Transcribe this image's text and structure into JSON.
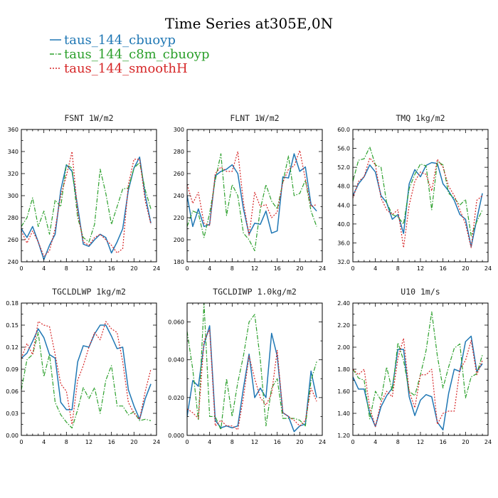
{
  "title": "Time Series at305E,0N",
  "legend": [
    {
      "label": "taus_144_cbuoyp",
      "color": "#1f77b4",
      "dash": "solid"
    },
    {
      "label": "taus_144_c8m_cbuoyp",
      "color": "#2ca02c",
      "dash": "dashdot"
    },
    {
      "label": "taus_144_smoothH",
      "color": "#d62728",
      "dash": "dotted"
    }
  ],
  "chart_data": [
    {
      "type": "line",
      "title": "FSNT   1W/m2",
      "xlim": [
        0,
        24
      ],
      "ylim": [
        240,
        360
      ],
      "xticks": [
        0,
        4,
        8,
        12,
        16,
        20,
        24
      ],
      "yticks": [
        240,
        260,
        280,
        300,
        320,
        340,
        360
      ],
      "ytick_labels": [
        "240",
        "260",
        "280",
        "300",
        "320",
        "340",
        "360"
      ],
      "x": [
        0,
        1,
        2,
        3,
        4,
        5,
        6,
        7,
        8,
        9,
        10,
        11,
        12,
        13,
        14,
        15,
        16,
        17,
        18,
        19,
        20,
        21,
        22,
        23
      ],
      "series": [
        {
          "name": "taus_144_cbuoyp",
          "values": [
            270,
            262,
            272,
            258,
            242,
            255,
            265,
            305,
            328,
            322,
            290,
            256,
            254,
            260,
            265,
            262,
            248,
            258,
            270,
            305,
            325,
            335,
            300,
            275
          ]
        },
        {
          "name": "taus_144_c8m_cbuoyp",
          "values": [
            272,
            280,
            298,
            272,
            286,
            265,
            296,
            290,
            328,
            325,
            280,
            262,
            258,
            274,
            324,
            302,
            274,
            290,
            306,
            307,
            325,
            330,
            305,
            288
          ]
        },
        {
          "name": "taus_144_smoothH",
          "values": [
            268,
            257,
            268,
            258,
            245,
            250,
            270,
            300,
            318,
            340,
            285,
            258,
            255,
            262,
            265,
            260,
            255,
            248,
            252,
            310,
            333,
            333,
            295,
            274
          ]
        }
      ]
    },
    {
      "type": "line",
      "title": "FLNT   1W/m2",
      "xlim": [
        0,
        24
      ],
      "ylim": [
        180,
        300
      ],
      "xticks": [
        0,
        4,
        8,
        12,
        16,
        20,
        24
      ],
      "yticks": [
        180,
        200,
        220,
        240,
        260,
        280,
        300
      ],
      "ytick_labels": [
        "180",
        "200",
        "220",
        "240",
        "260",
        "280",
        "300"
      ],
      "x": [
        0,
        1,
        2,
        3,
        4,
        5,
        6,
        7,
        8,
        9,
        10,
        11,
        12,
        13,
        14,
        15,
        16,
        17,
        18,
        19,
        20,
        21,
        22,
        23
      ],
      "series": [
        {
          "name": "taus_144_cbuoyp",
          "values": [
            240,
            212,
            228,
            212,
            214,
            258,
            262,
            264,
            268,
            260,
            228,
            205,
            215,
            214,
            226,
            206,
            208,
            257,
            256,
            278,
            262,
            266,
            232,
            226
          ]
        },
        {
          "name": "taus_144_c8m_cbuoyp",
          "values": [
            212,
            226,
            224,
            202,
            224,
            254,
            278,
            222,
            250,
            240,
            206,
            200,
            190,
            228,
            250,
            235,
            228,
            252,
            276,
            240,
            242,
            254,
            226,
            212
          ]
        },
        {
          "name": "taus_144_smoothH",
          "values": [
            250,
            233,
            243,
            215,
            213,
            260,
            266,
            262,
            262,
            280,
            234,
            204,
            243,
            230,
            232,
            220,
            225,
            252,
            264,
            267,
            281,
            255,
            230,
            232
          ]
        }
      ]
    },
    {
      "type": "line",
      "title": "TMQ   1kg/m2",
      "xlim": [
        0,
        24
      ],
      "ylim": [
        32,
        60
      ],
      "xticks": [
        0,
        4,
        8,
        12,
        16,
        20,
        24
      ],
      "yticks": [
        32,
        36,
        40,
        44,
        48,
        52,
        56,
        60
      ],
      "ytick_labels": [
        "32.0",
        "36.0",
        "40.0",
        "44.0",
        "48.0",
        "52.0",
        "56.0",
        "60.0"
      ],
      "x": [
        0,
        1,
        2,
        3,
        4,
        5,
        6,
        7,
        8,
        9,
        10,
        11,
        12,
        13,
        14,
        15,
        16,
        17,
        18,
        19,
        20,
        21,
        22,
        23
      ],
      "series": [
        {
          "name": "taus_144_cbuoyp",
          "values": [
            46,
            48.5,
            50,
            52.5,
            51,
            46,
            44.5,
            41,
            42,
            38,
            48.5,
            51.5,
            50,
            52.4,
            53,
            52.8,
            48.5,
            47,
            45,
            42,
            41,
            35.2,
            41,
            46.5
          ]
        },
        {
          "name": "taus_144_c8m_cbuoyp",
          "values": [
            49,
            53.5,
            53.8,
            56.3,
            52.5,
            52,
            44.5,
            42,
            41.5,
            40,
            47.5,
            50.5,
            52.7,
            52.3,
            43,
            53.2,
            52.5,
            46.5,
            45.5,
            44,
            45.2,
            37.5,
            40.5,
            43
          ]
        },
        {
          "name": "taus_144_smoothH",
          "values": [
            45.5,
            49,
            50,
            54,
            52.5,
            45.5,
            43,
            42,
            43,
            35,
            44,
            49,
            51,
            50.5,
            47,
            53.7,
            52,
            48,
            46,
            43,
            40,
            35,
            45,
            46
          ]
        }
      ]
    },
    {
      "type": "line",
      "title": "TGCLDLWP   1kg/m2",
      "xlim": [
        0,
        24
      ],
      "ylim": [
        0,
        0.18
      ],
      "xticks": [
        0,
        4,
        8,
        12,
        16,
        20,
        24
      ],
      "yticks": [
        0,
        0.03,
        0.06,
        0.09,
        0.12,
        0.15,
        0.18
      ],
      "ytick_labels": [
        "0.00",
        "0.03",
        "0.06",
        "0.09",
        "0.12",
        "0.15",
        "0.18"
      ],
      "x": [
        0,
        1,
        2,
        3,
        4,
        5,
        6,
        7,
        8,
        9,
        10,
        11,
        12,
        13,
        14,
        15,
        16,
        17,
        18,
        19,
        20,
        21,
        22,
        23
      ],
      "series": [
        {
          "name": "taus_144_cbuoyp",
          "values": [
            0.105,
            0.112,
            0.128,
            0.145,
            0.133,
            0.11,
            0.105,
            0.045,
            0.035,
            0.035,
            0.1,
            0.122,
            0.12,
            0.138,
            0.15,
            0.15,
            0.135,
            0.118,
            0.12,
            0.062,
            0.04,
            0.022,
            0.05,
            0.07
          ]
        },
        {
          "name": "taus_144_c8m_cbuoyp",
          "values": [
            0.062,
            0.103,
            0.11,
            0.14,
            0.08,
            0.11,
            0.045,
            0.028,
            0.018,
            0.01,
            0.035,
            0.065,
            0.05,
            0.065,
            0.03,
            0.075,
            0.095,
            0.04,
            0.04,
            0.028,
            0.032,
            0.02,
            0.022,
            0.02
          ]
        },
        {
          "name": "taus_144_smoothH",
          "values": [
            0.105,
            0.125,
            0.11,
            0.155,
            0.15,
            0.148,
            0.11,
            0.07,
            0.06,
            0.015,
            0.075,
            0.095,
            0.12,
            0.14,
            0.13,
            0.155,
            0.145,
            0.14,
            0.1,
            0.045,
            0.03,
            0.022,
            0.06,
            0.09
          ]
        }
      ]
    },
    {
      "type": "line",
      "title": "TGCLDIWP   1.0kg/m2",
      "xlim": [
        0,
        24
      ],
      "ylim": [
        0,
        0.07
      ],
      "xticks": [
        0,
        4,
        8,
        12,
        16,
        20,
        24
      ],
      "yticks": [
        0,
        0.02,
        0.04,
        0.06
      ],
      "ytick_labels": [
        "0.000",
        "0.020",
        "0.040",
        "0.060"
      ],
      "x": [
        0,
        1,
        2,
        3,
        4,
        5,
        6,
        7,
        8,
        9,
        10,
        11,
        12,
        13,
        14,
        15,
        16,
        17,
        18,
        19,
        20,
        21,
        22,
        23
      ],
      "series": [
        {
          "name": "taus_144_cbuoyp",
          "values": [
            0.01,
            0.029,
            0.026,
            0.048,
            0.058,
            0.008,
            0.004,
            0.005,
            0.004,
            0.005,
            0.025,
            0.043,
            0.02,
            0.025,
            0.02,
            0.054,
            0.042,
            0.012,
            0.01,
            0.002,
            0.005,
            0.006,
            0.034,
            0.02
          ]
        },
        {
          "name": "taus_144_c8m_cbuoyp",
          "values": [
            0.055,
            0.035,
            0.008,
            0.07,
            0.01,
            0.01,
            0.003,
            0.03,
            0.01,
            0.028,
            0.042,
            0.06,
            0.064,
            0.04,
            0.005,
            0.025,
            0.03,
            0.009,
            0.009,
            0.009,
            0.008,
            0.005,
            0.029,
            0.039
          ]
        },
        {
          "name": "taus_144_smoothH",
          "values": [
            0.014,
            0.012,
            0.009,
            0.05,
            0.056,
            0.005,
            0.008,
            0.005,
            0.005,
            0.003,
            0.02,
            0.042,
            0.03,
            0.02,
            0.016,
            0.022,
            0.045,
            0.012,
            0.01,
            0.008,
            0.005,
            0.008,
            0.025,
            0.018
          ]
        }
      ]
    },
    {
      "type": "line",
      "title": "U10   1m/s",
      "xlim": [
        0,
        24
      ],
      "ylim": [
        1.2,
        2.4
      ],
      "xticks": [
        0,
        4,
        8,
        12,
        16,
        20,
        24
      ],
      "yticks": [
        1.2,
        1.4,
        1.6,
        1.8,
        2.0,
        2.2,
        2.4
      ],
      "ytick_labels": [
        "1.20",
        "1.40",
        "1.60",
        "1.80",
        "2.00",
        "2.20",
        "2.40"
      ],
      "x": [
        0,
        1,
        2,
        3,
        4,
        5,
        6,
        7,
        8,
        9,
        10,
        11,
        12,
        13,
        14,
        15,
        16,
        17,
        18,
        19,
        20,
        21,
        22,
        23
      ],
      "series": [
        {
          "name": "taus_144_cbuoyp",
          "values": [
            1.73,
            1.62,
            1.62,
            1.4,
            1.28,
            1.46,
            1.56,
            1.63,
            1.98,
            1.98,
            1.55,
            1.38,
            1.52,
            1.57,
            1.55,
            1.32,
            1.25,
            1.58,
            1.8,
            1.78,
            2.05,
            2.1,
            1.78,
            1.85
          ]
        },
        {
          "name": "taus_144_c8m_cbuoyp",
          "values": [
            1.8,
            1.72,
            1.7,
            1.35,
            1.6,
            1.52,
            1.82,
            1.6,
            2.04,
            1.88,
            1.6,
            1.56,
            1.75,
            1.97,
            2.32,
            1.92,
            1.63,
            1.82,
            1.99,
            2.03,
            1.54,
            1.73,
            1.76,
            1.93
          ]
        },
        {
          "name": "taus_144_smoothH",
          "values": [
            1.8,
            1.75,
            1.8,
            1.45,
            1.28,
            1.5,
            1.6,
            1.55,
            1.9,
            2.08,
            1.6,
            1.45,
            1.75,
            1.75,
            1.8,
            1.3,
            1.4,
            1.42,
            1.42,
            1.8,
            1.88,
            2.06,
            1.75,
            1.88
          ]
        }
      ]
    }
  ]
}
